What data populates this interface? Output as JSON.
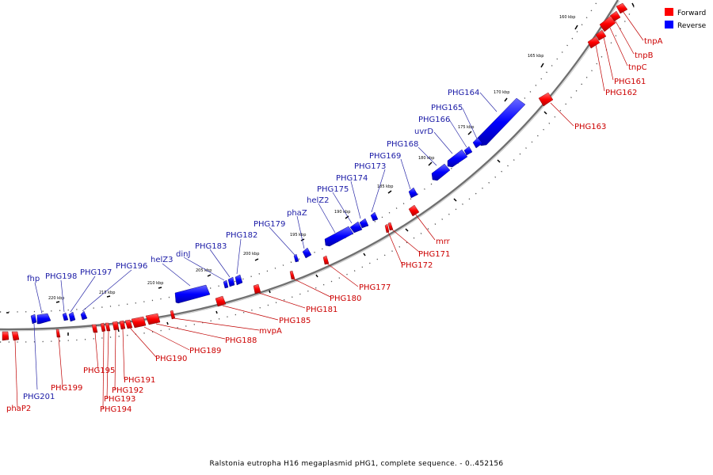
{
  "caption": "Ralstonia eutropha H16 megaplasmid pHG1, complete sequence. - 0..452156",
  "colors": {
    "forward": "#ff0000",
    "reverse": "#0000ff",
    "backbone": "#707070",
    "forward_label": "#cc0000",
    "reverse_label": "#1a1aa6"
  },
  "legend": {
    "forward": "Forward",
    "reverse": "Reverse"
  },
  "ticks": [
    "160 kbp",
    "165 kbp",
    "170 kbp",
    "175 kbp",
    "180 kbp",
    "185 kbp",
    "190 kbp",
    "195 kbp",
    "200 kbp",
    "205 kbp",
    "210 kbp",
    "215 kbp",
    "220 kbp"
  ],
  "reverse_labels": [
    "PHG164",
    "PHG165",
    "PHG166",
    "uvrD",
    "PHG168",
    "PHG169",
    "PHG173",
    "PHG174",
    "PHG175",
    "helZ2",
    "phaZ",
    "PHG179",
    "PHG182",
    "PHG183",
    "dinJ",
    "helZ3",
    "PHG196",
    "PHG197",
    "PHG198",
    "fhp",
    "PHG201"
  ],
  "forward_labels": [
    "tnpA",
    "tnpB",
    "tnpC",
    "PHG161",
    "PHG162",
    "PHG163",
    "mrr",
    "PHG171",
    "PHG172",
    "PHG177",
    "PHG180",
    "PHG181",
    "PHG185",
    "mvpA",
    "PHG188",
    "PHG189",
    "PHG190",
    "PHG191",
    "PHG192",
    "PHG193",
    "PHG194",
    "PHG195",
    "PHG199",
    "phaP2"
  ]
}
